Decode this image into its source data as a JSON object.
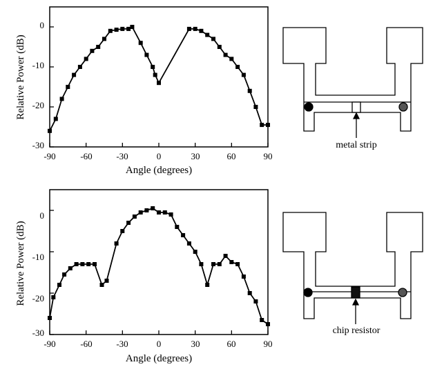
{
  "chart_data": [
    {
      "type": "line",
      "title": "",
      "xlabel": "Angle (degrees)",
      "ylabel": "Relative Power (dB)",
      "xlim": [
        -90,
        90
      ],
      "ylim": [
        -30,
        5
      ],
      "xticks": [
        "-90",
        "-60",
        "-30",
        "0",
        "30",
        "60",
        "90"
      ],
      "yticks": [
        "0",
        "-10",
        "-20",
        "-30"
      ],
      "grid": false,
      "marker": "square",
      "x": [
        -90,
        -85,
        -80,
        -75,
        -70,
        -65,
        -60,
        -55,
        -50,
        -45,
        -40,
        -35,
        -30,
        -25,
        -22,
        -15,
        -10,
        -5,
        -3,
        0,
        25,
        30,
        35,
        40,
        45,
        50,
        55,
        60,
        65,
        70,
        75,
        80,
        85,
        90
      ],
      "values": [
        -26,
        -23,
        -18,
        -15,
        -12,
        -10,
        -8,
        -6,
        -5,
        -3,
        -1,
        -0.7,
        -0.5,
        -0.5,
        0,
        -4,
        -7,
        -10,
        -12,
        -14,
        -0.5,
        -0.5,
        -1,
        -2,
        -3,
        -5,
        -7,
        -8,
        -10,
        -12,
        -16,
        -20,
        -24.5,
        -24.5
      ]
    },
    {
      "type": "line",
      "title": "",
      "xlabel": "Angle (degrees)",
      "ylabel": "Relative Power (dB)",
      "xlim": [
        -90,
        90
      ],
      "ylim": [
        -30,
        5
      ],
      "xticks": [
        "-90",
        "-60",
        "-30",
        "0",
        "30",
        "60",
        "90"
      ],
      "yticks": [
        "0",
        "-10",
        "-20",
        "-30"
      ],
      "grid": false,
      "marker": "square",
      "x": [
        -90,
        -87,
        -82,
        -78,
        -73,
        -68,
        -63,
        -58,
        -53,
        -47,
        -43,
        -35,
        -30,
        -25,
        -20,
        -15,
        -10,
        -5,
        0,
        5,
        10,
        15,
        20,
        25,
        30,
        35,
        40,
        45,
        50,
        55,
        60,
        65,
        70,
        75,
        80,
        85,
        90
      ],
      "values": [
        -26,
        -21,
        -18,
        -15.5,
        -14,
        -13,
        -13,
        -13,
        -13,
        -18,
        -17,
        -8,
        -5,
        -3,
        -1.5,
        -0.5,
        0,
        0.5,
        -0.5,
        -0.5,
        -1,
        -4,
        -6,
        -8,
        -10,
        -13,
        -18,
        -13,
        -13,
        -11,
        -12.5,
        -13,
        -16,
        -20,
        -22,
        -26.5,
        -27.5
      ]
    }
  ],
  "diagrams": [
    {
      "label": "metal strip",
      "strip": "open"
    },
    {
      "label": "chip resistor",
      "strip": "filled"
    }
  ]
}
